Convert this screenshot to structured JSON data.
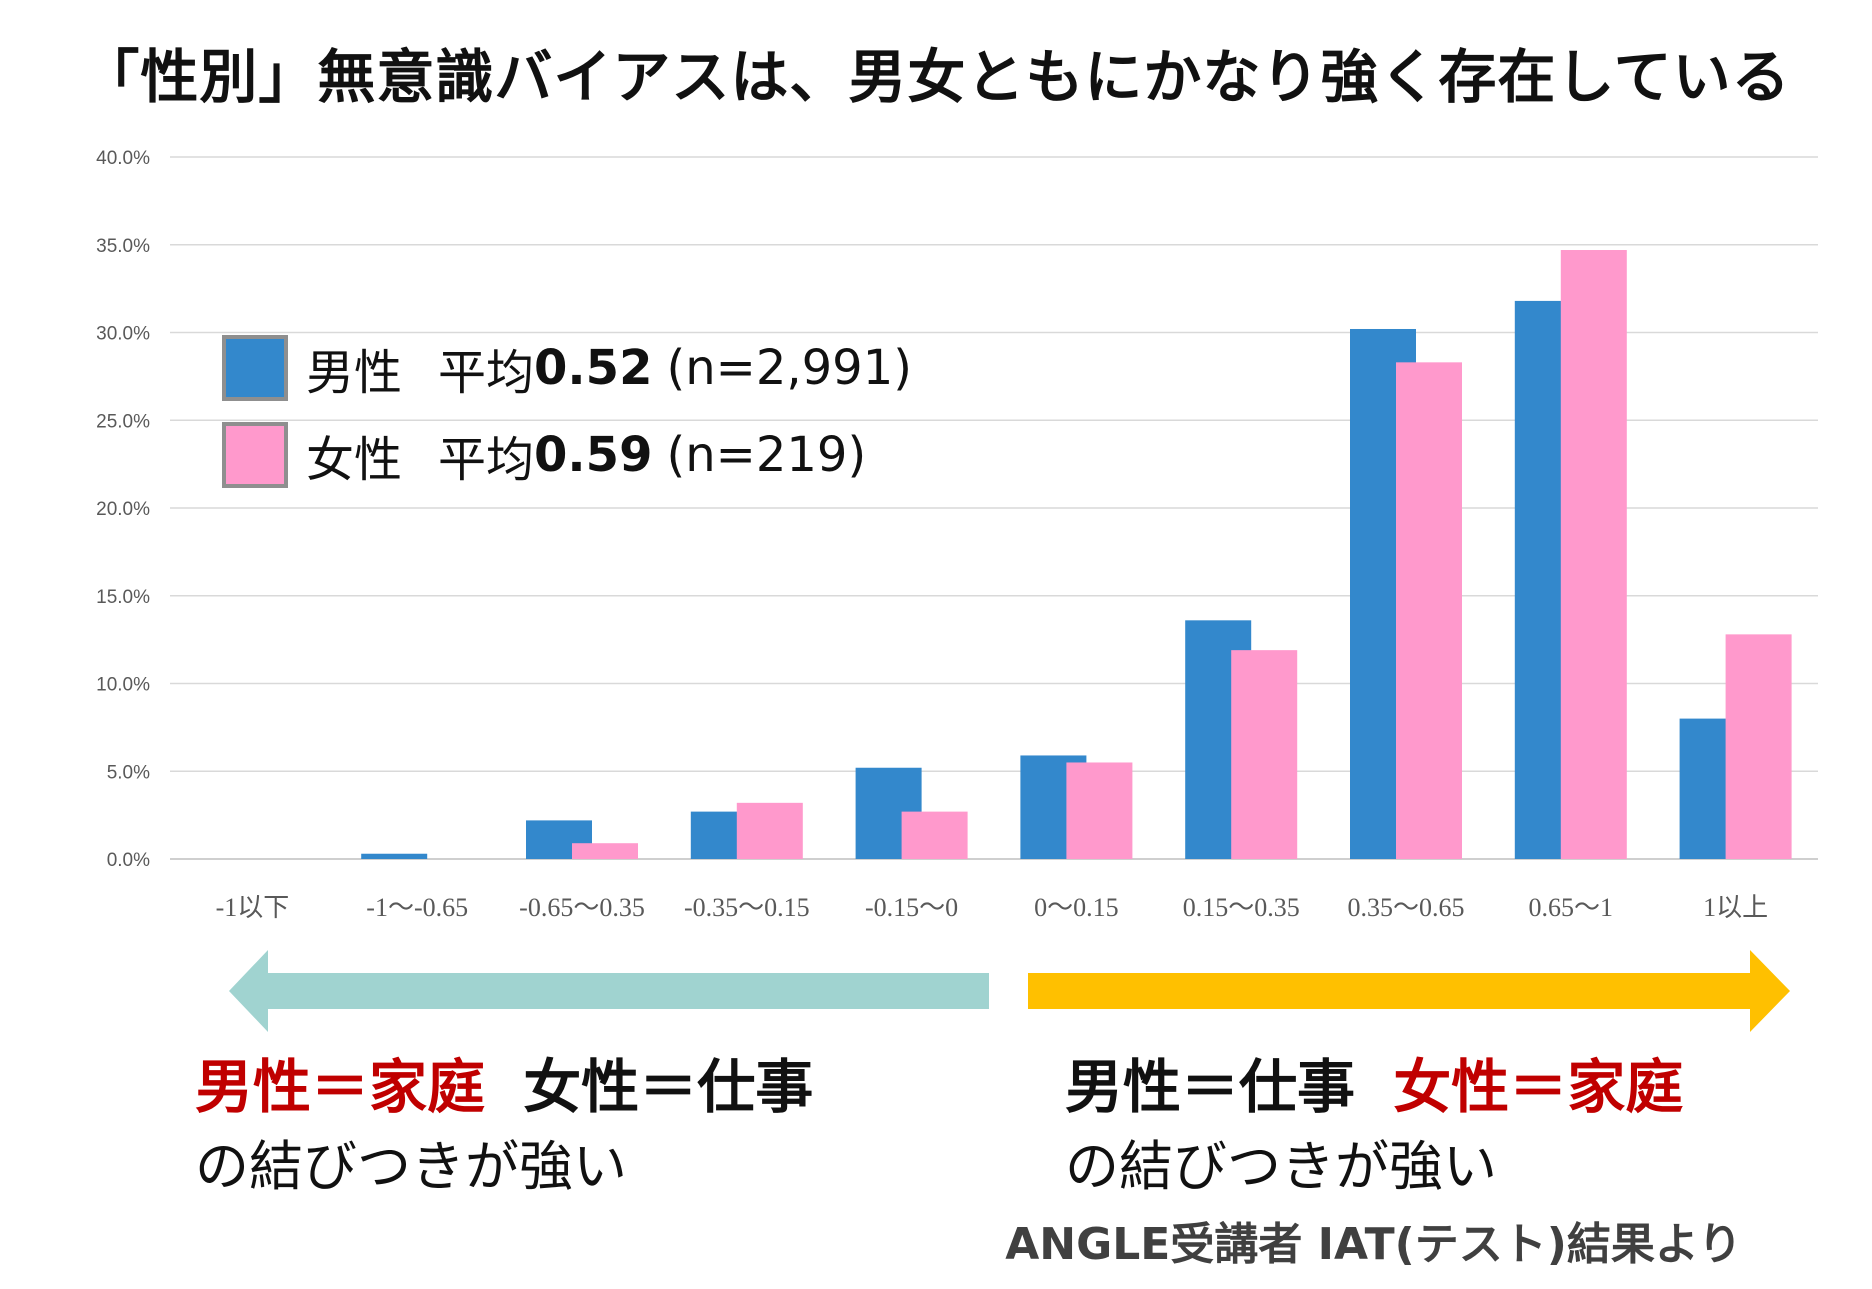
{
  "title": "「性別」無意識バイアスは、男女ともにかなり強く存在している",
  "legend": [
    {
      "swatch_color": "#3388cc",
      "name": "男性",
      "mean_label": "平均",
      "mean_value": "0.52",
      "n": "(n=2,991)"
    },
    {
      "swatch_color": "#ff99cc",
      "name": "女性",
      "mean_label": "平均",
      "mean_value": "0.59",
      "n": "(n=219)"
    }
  ],
  "chart_data": {
    "type": "bar",
    "title": "",
    "xlabel": "",
    "ylabel": "",
    "ylim": [
      0,
      40
    ],
    "yticks": [
      "0.0%",
      "5.0%",
      "10.0%",
      "15.0%",
      "20.0%",
      "25.0%",
      "30.0%",
      "35.0%",
      "40.0%"
    ],
    "grid": true,
    "categories": [
      "-1以下",
      "-1〜-0.65",
      "-0.65〜0.35",
      "-0.35〜0.15",
      "-0.15〜0",
      "0〜0.15",
      "0.15〜0.35",
      "0.35〜0.65",
      "0.65〜1",
      "1以上"
    ],
    "series": [
      {
        "name": "男性",
        "color": "#3388cc",
        "values": [
          0.0,
          0.3,
          2.2,
          2.7,
          5.2,
          5.9,
          13.6,
          30.2,
          31.8,
          8.0
        ]
      },
      {
        "name": "女性",
        "color": "#ff99cc",
        "values": [
          0.0,
          0.0,
          0.9,
          3.2,
          2.7,
          5.5,
          11.9,
          28.3,
          34.7,
          12.8
        ]
      }
    ]
  },
  "arrows": {
    "left_color": "#a0d3d0",
    "right_color": "#ffc000"
  },
  "left_statement": {
    "part1": "男性＝家庭",
    "part2": "女性＝仕事",
    "sub": "の結びつきが強い"
  },
  "right_statement": {
    "part1": "男性＝仕事",
    "part2": "女性＝家庭",
    "sub": "の結びつきが強い"
  },
  "source": "ANGLE受講者 IAT(テスト)結果より"
}
